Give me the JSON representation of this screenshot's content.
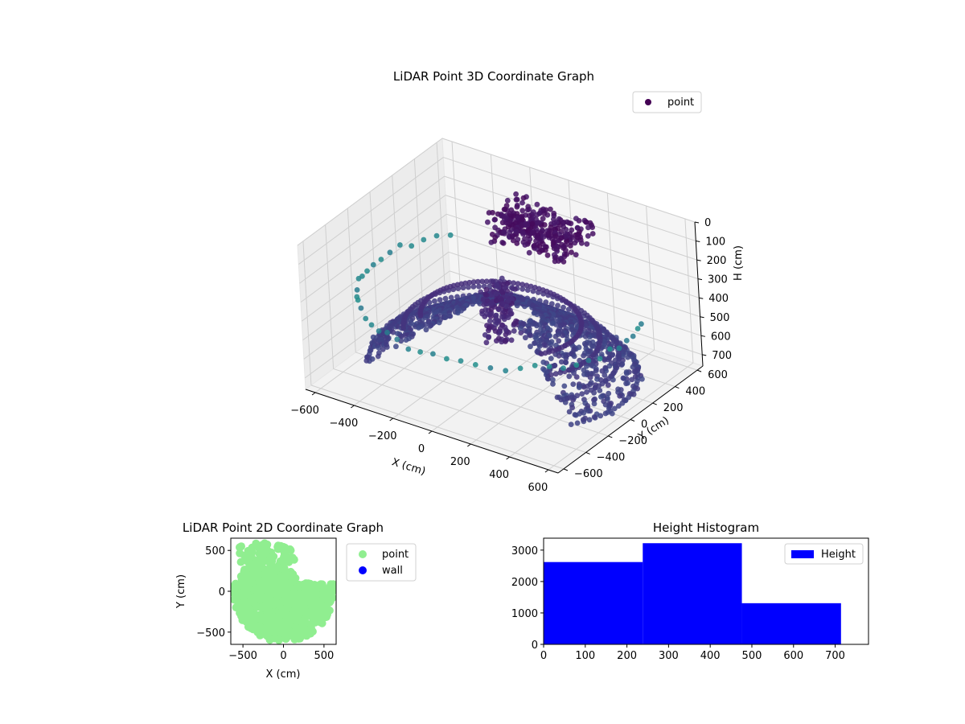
{
  "chart_data": [
    {
      "type": "scatter3d",
      "title": "LiDAR Point 3D Coordinate Graph",
      "xlabel": "X (cm)",
      "ylabel": "Y (cm)",
      "zlabel": "H (cm)",
      "xlim": [
        -650,
        650
      ],
      "ylim": [
        -650,
        650
      ],
      "zlim": [
        0,
        760
      ],
      "zaxis_inverted": true,
      "x_ticks": [
        -600,
        -400,
        -200,
        0,
        200,
        400,
        600
      ],
      "y_ticks": [
        -600,
        -400,
        -200,
        0,
        200,
        400,
        600
      ],
      "z_ticks": [
        0,
        100,
        200,
        300,
        400,
        500,
        600,
        700
      ],
      "x_tick_labels": [
        "−600",
        "−400",
        "−200",
        "0",
        "200",
        "400",
        "600"
      ],
      "y_tick_labels": [
        "−600",
        "−400",
        "−200",
        "0",
        "200",
        "400",
        "600"
      ],
      "z_tick_labels": [
        "0",
        "100",
        "200",
        "300",
        "400",
        "500",
        "600",
        "700"
      ],
      "colormap": "viridis",
      "legend": {
        "placement": "top-right",
        "entries": [
          {
            "label": "point",
            "color": "#440154"
          }
        ]
      },
      "structure": {
        "rings": [
          {
            "radius": 600,
            "height": 700,
            "theta_start": -30,
            "theta_end": 215
          },
          {
            "radius": 520,
            "height": 610,
            "theta_start": -30,
            "theta_end": 215
          },
          {
            "radius": 440,
            "height": 520,
            "theta_start": -30,
            "theta_end": 215
          },
          {
            "radius": 360,
            "height": 450,
            "theta_start": -30,
            "theta_end": 215
          }
        ],
        "sparse_ring": {
          "radius": 640,
          "height": 360,
          "theta_start": 140,
          "theta_end": 380
        },
        "top_cluster": {
          "x_range": [
            -250,
            150
          ],
          "y_range": [
            300,
            600
          ],
          "height_range": [
            120,
            260
          ]
        },
        "tower": {
          "x_range": [
            -60,
            60
          ],
          "y_range": [
            -80,
            80
          ],
          "height_range": [
            250,
            560
          ]
        }
      }
    },
    {
      "type": "scatter",
      "title": "LiDAR Point 2D Coordinate Graph",
      "xlabel": "X (cm)",
      "ylabel": "Y (cm)",
      "xlim": [
        -650,
        650
      ],
      "ylim": [
        -650,
        650
      ],
      "x_ticks": [
        -500,
        0,
        500
      ],
      "y_ticks": [
        -500,
        0,
        500
      ],
      "x_tick_labels": [
        "−500",
        "0",
        "500"
      ],
      "y_tick_labels": [
        "−500",
        "0",
        "500"
      ],
      "legend": {
        "placement": "outside-right",
        "entries": [
          {
            "label": "point",
            "color": "#90ee90"
          },
          {
            "label": "wall",
            "color": "#0000ff"
          }
        ]
      },
      "series": [
        {
          "name": "point",
          "color": "#90ee90",
          "region": "disk",
          "radius": 620,
          "y_max": 100
        },
        {
          "name": "point",
          "color": "#90ee90",
          "region": "cluster",
          "x_range": [
            -550,
            150
          ],
          "y_range": [
            100,
            590
          ]
        }
      ]
    },
    {
      "type": "bar",
      "title": "Height Histogram",
      "xlim": [
        0,
        780
      ],
      "ylim": [
        0,
        3380
      ],
      "x_ticks": [
        0,
        100,
        200,
        300,
        400,
        500,
        600,
        700
      ],
      "y_ticks": [
        0,
        1000,
        2000,
        3000
      ],
      "x_tick_labels": [
        "0",
        "100",
        "200",
        "300",
        "400",
        "500",
        "600",
        "700"
      ],
      "y_tick_labels": [
        "0",
        "1000",
        "2000",
        "3000"
      ],
      "bin_edges": [
        0,
        238,
        476,
        714
      ],
      "values": [
        2620,
        3220,
        1310
      ],
      "color": "#0000ff",
      "legend": {
        "placement": "top-right",
        "entries": [
          {
            "label": "Height",
            "color": "#0000ff"
          }
        ]
      }
    }
  ]
}
